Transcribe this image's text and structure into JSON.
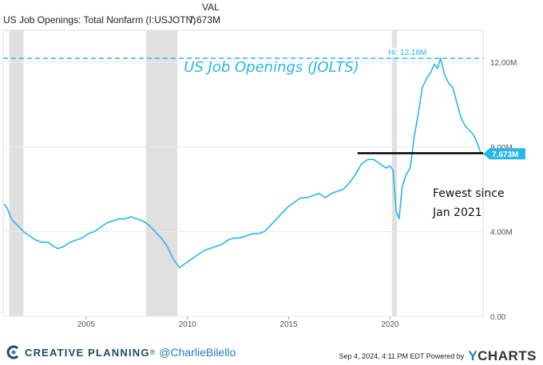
{
  "legend": {
    "header": "VAL",
    "series_label": "US Job Openings: Total Nonfarm (I:USJOTN)",
    "series_value": "7.673M"
  },
  "chart_data": {
    "type": "line",
    "title": "US Job Openings (JOLTS)",
    "xlabel": "",
    "ylabel": "",
    "xlim": [
      2000.9,
      2024.6
    ],
    "ylim": [
      0,
      13.5
    ],
    "x_ticks": [
      2005,
      2010,
      2015,
      2020
    ],
    "y_ticks": [
      0,
      4,
      8,
      12
    ],
    "y_tick_labels": [
      "0.00",
      "4.00M",
      "8.00M",
      "12.00M"
    ],
    "grid": true,
    "recessions": [
      [
        2001.2,
        2001.9
      ],
      [
        2007.95,
        2009.5
      ],
      [
        2020.1,
        2020.35
      ]
    ],
    "high": {
      "value": 12.18,
      "label": "Hi: 12.18M"
    },
    "last_value": {
      "value": 7.673,
      "label": "7.673M"
    },
    "series": [
      {
        "color": "#29b6e8",
        "x": [
          2000.95,
          2001.1,
          2001.3,
          2001.6,
          2001.9,
          2002.2,
          2002.5,
          2002.8,
          2003.1,
          2003.4,
          2003.6,
          2003.9,
          2004.2,
          2004.5,
          2004.8,
          2005.1,
          2005.4,
          2005.7,
          2006.0,
          2006.3,
          2006.6,
          2006.9,
          2007.2,
          2007.5,
          2007.8,
          2008.1,
          2008.4,
          2008.7,
          2009.0,
          2009.3,
          2009.6,
          2009.9,
          2010.2,
          2010.5,
          2010.8,
          2011.1,
          2011.4,
          2011.7,
          2012.0,
          2012.3,
          2012.6,
          2012.9,
          2013.2,
          2013.5,
          2013.8,
          2014.1,
          2014.4,
          2014.7,
          2015.0,
          2015.3,
          2015.6,
          2015.9,
          2016.2,
          2016.5,
          2016.8,
          2017.1,
          2017.4,
          2017.7,
          2018.0,
          2018.3,
          2018.6,
          2018.9,
          2019.2,
          2019.5,
          2019.8,
          2020.0,
          2020.15,
          2020.3,
          2020.45,
          2020.6,
          2020.8,
          2021.0,
          2021.2,
          2021.4,
          2021.6,
          2021.8,
          2022.0,
          2022.2,
          2022.35,
          2022.5,
          2022.7,
          2022.9,
          2023.1,
          2023.3,
          2023.5,
          2023.7,
          2023.9,
          2024.1,
          2024.3,
          2024.5
        ],
        "y": [
          5.3,
          5.1,
          4.6,
          4.3,
          4.0,
          3.8,
          3.6,
          3.5,
          3.5,
          3.3,
          3.2,
          3.3,
          3.5,
          3.6,
          3.7,
          3.9,
          4.0,
          4.2,
          4.4,
          4.5,
          4.6,
          4.6,
          4.7,
          4.6,
          4.5,
          4.3,
          4.0,
          3.7,
          3.3,
          2.7,
          2.3,
          2.5,
          2.7,
          2.9,
          3.1,
          3.2,
          3.3,
          3.4,
          3.6,
          3.7,
          3.7,
          3.8,
          3.9,
          3.9,
          4.0,
          4.3,
          4.6,
          4.9,
          5.2,
          5.4,
          5.6,
          5.6,
          5.7,
          5.8,
          5.6,
          5.8,
          5.9,
          6.0,
          6.3,
          6.7,
          7.2,
          7.4,
          7.4,
          7.2,
          7.0,
          7.1,
          6.9,
          5.0,
          4.6,
          6.1,
          6.7,
          7.0,
          8.5,
          9.6,
          10.8,
          11.2,
          11.5,
          11.9,
          11.7,
          12.18,
          11.4,
          11.0,
          10.8,
          10.1,
          9.4,
          9.0,
          8.8,
          8.6,
          8.2,
          7.673
        ]
      }
    ],
    "reference_line": {
      "y": 7.7,
      "x_start": 2018.4,
      "x_end": 2024.6,
      "color": "#000000"
    },
    "annotations": [
      "Fewest since",
      "Jan 2021"
    ]
  },
  "footer": {
    "brand": "CREATIVE PLANNING",
    "handle": "@CharlieBilello",
    "timestamp": "Sep 4, 2024, 4:11 PM EDT Powered by",
    "ycharts_y": "Y",
    "ycharts_rest": "CHARTS"
  },
  "colors": {
    "line": "#29b6e8",
    "recession": "#e0e0e0",
    "grid": "#ebebeb",
    "brand_blue": "#1e7fb6",
    "brand_dark": "#1f4b63"
  },
  "icons": {
    "brand_logo": "creative-planning-c-logo"
  }
}
